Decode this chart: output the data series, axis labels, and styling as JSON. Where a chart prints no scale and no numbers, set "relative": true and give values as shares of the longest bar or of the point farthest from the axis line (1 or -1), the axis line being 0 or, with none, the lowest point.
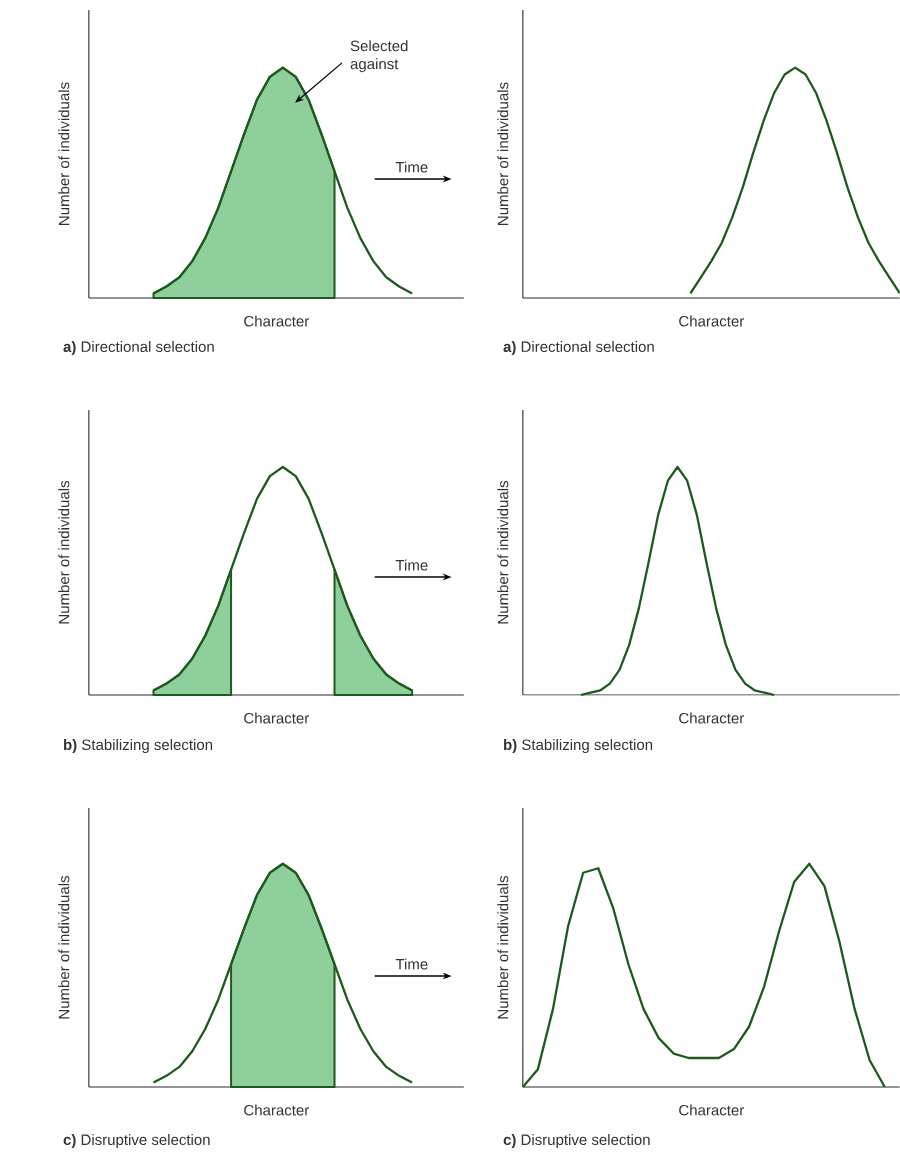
{
  "chart_data": [
    {
      "type": "line",
      "relative": true,
      "title": "**a)** Directional selection",
      "xlabel": "Character",
      "ylabel": "Number of individuals",
      "marker": "none",
      "line_style": "solid",
      "annotations": [
        "Selected against",
        "Time"
      ],
      "categories": [
        null,
        null,
        null,
        null,
        null,
        null,
        null,
        null,
        null,
        null,
        null,
        null,
        null,
        null,
        null,
        null,
        null,
        null,
        null,
        null,
        null,
        null,
        null,
        null,
        null,
        null,
        null,
        null,
        null,
        null
      ],
      "series": [
        {
          "type": "area",
          "color": "#8fcf9c",
          "values": [
            null,
            null,
            null,
            null,
            null,
            0.02,
            0.05,
            0.09,
            0.16,
            0.26,
            0.39,
            0.55,
            0.71,
            0.86,
            0.96,
            1,
            0.96,
            0.86,
            0.71,
            0.55,
            null,
            null,
            null,
            null,
            null,
            null,
            null,
            null,
            null,
            null
          ]
        },
        {
          "color": "#1e5a1e",
          "values": [
            null,
            null,
            null,
            null,
            null,
            0.02,
            0.05,
            0.09,
            0.16,
            0.26,
            0.39,
            0.55,
            0.71,
            0.86,
            0.96,
            1,
            0.96,
            0.86,
            0.71,
            0.55,
            0.39,
            0.26,
            0.16,
            0.09,
            0.05,
            0.02,
            null,
            null,
            null,
            null
          ]
        }
      ]
    },
    {
      "type": "line",
      "relative": true,
      "title": "**a)** Directional selection",
      "xlabel": "Character",
      "ylabel": "Number of individuals",
      "marker": "none",
      "line_style": "solid",
      "categories": [
        null,
        null,
        null,
        null,
        null,
        null,
        null,
        null,
        null,
        null,
        null,
        null,
        null,
        null,
        null,
        null,
        null,
        null,
        null,
        null,
        null,
        null,
        null,
        null,
        null,
        null,
        null,
        null,
        null,
        null,
        null,
        null,
        null,
        null,
        null,
        null,
        null
      ],
      "series": [
        {
          "color": "#1e5a1e",
          "values": [
            null,
            null,
            null,
            null,
            null,
            null,
            null,
            null,
            null,
            null,
            null,
            null,
            null,
            null,
            null,
            null,
            0.02,
            0.09,
            0.16,
            0.24,
            0.35,
            0.48,
            0.63,
            0.77,
            0.89,
            0.97,
            1,
            0.97,
            0.89,
            0.77,
            0.63,
            0.48,
            0.35,
            0.24,
            0.16,
            0.09,
            0.02
          ]
        }
      ]
    },
    {
      "type": "line",
      "relative": true,
      "title": "**b)** Stabilizing selection",
      "xlabel": "Character",
      "ylabel": "Number of individuals",
      "marker": "none",
      "line_style": "solid",
      "annotations": [
        "Time"
      ],
      "categories": [
        null,
        null,
        null,
        null,
        null,
        null,
        null,
        null,
        null,
        null,
        null,
        null,
        null,
        null,
        null,
        null,
        null,
        null,
        null,
        null,
        null,
        null,
        null,
        null,
        null,
        null,
        null,
        null,
        null,
        null
      ],
      "series": [
        {
          "type": "area",
          "color": "#8fcf9c",
          "values": [
            null,
            null,
            null,
            null,
            null,
            0.02,
            0.05,
            0.09,
            0.16,
            0.26,
            0.39,
            0.55,
            null,
            null,
            null,
            null,
            null,
            null,
            null,
            0.55,
            0.39,
            0.26,
            0.16,
            0.09,
            0.05,
            0.02,
            null,
            null,
            null,
            null
          ]
        },
        {
          "color": "#1e5a1e",
          "values": [
            null,
            null,
            null,
            null,
            null,
            0.02,
            0.05,
            0.09,
            0.16,
            0.26,
            0.39,
            0.55,
            0.71,
            0.86,
            0.96,
            1,
            0.96,
            0.86,
            0.71,
            0.55,
            0.39,
            0.26,
            0.16,
            0.09,
            0.05,
            0.02,
            null,
            null,
            null,
            null
          ]
        }
      ]
    },
    {
      "type": "line",
      "relative": true,
      "title": "**b)** Stabilizing selection",
      "xlabel": "Character",
      "ylabel": "Number of individuals",
      "marker": "none",
      "line_style": "solid",
      "categories": [
        null,
        null,
        null,
        null,
        null,
        null,
        null,
        null,
        null,
        null,
        null,
        null,
        null,
        null,
        null,
        null,
        null,
        null,
        null,
        null,
        null,
        null,
        null,
        null,
        null,
        null,
        null,
        null,
        null,
        null,
        null,
        null,
        null,
        null,
        null,
        null,
        null,
        null,
        null,
        null
      ],
      "series": [
        {
          "color": "#1e5a1e",
          "values": [
            null,
            null,
            null,
            null,
            null,
            null,
            0,
            0.01,
            0.02,
            0.05,
            0.11,
            0.22,
            0.38,
            0.58,
            0.79,
            0.94,
            1,
            0.94,
            0.79,
            0.58,
            0.38,
            0.22,
            0.11,
            0.05,
            0.02,
            0.01,
            0,
            null,
            null,
            null,
            null,
            null,
            null,
            null,
            null,
            null,
            null,
            null,
            null,
            null
          ]
        }
      ]
    },
    {
      "type": "line",
      "relative": true,
      "title": "**c)** Disruptive selection",
      "xlabel": "Character",
      "ylabel": "Number of individuals",
      "marker": "none",
      "line_style": "solid",
      "annotations": [
        "Time"
      ],
      "categories": [
        null,
        null,
        null,
        null,
        null,
        null,
        null,
        null,
        null,
        null,
        null,
        null,
        null,
        null,
        null,
        null,
        null,
        null,
        null,
        null,
        null,
        null,
        null,
        null,
        null,
        null,
        null,
        null,
        null,
        null
      ],
      "series": [
        {
          "type": "area",
          "color": "#8fcf9c",
          "values": [
            null,
            null,
            null,
            null,
            null,
            null,
            null,
            null,
            null,
            null,
            null,
            0.55,
            0.71,
            0.86,
            0.96,
            1,
            0.96,
            0.86,
            0.71,
            0.55,
            null,
            null,
            null,
            null,
            null,
            null,
            null,
            null,
            null,
            null
          ]
        },
        {
          "color": "#1e5a1e",
          "values": [
            null,
            null,
            null,
            null,
            null,
            0.02,
            0.05,
            0.09,
            0.16,
            0.26,
            0.39,
            0.55,
            0.71,
            0.86,
            0.96,
            1,
            0.96,
            0.86,
            0.71,
            0.55,
            0.39,
            0.26,
            0.16,
            0.09,
            0.05,
            0.02,
            null,
            null,
            null,
            null
          ]
        }
      ]
    },
    {
      "type": "line",
      "relative": true,
      "title": "**c)** Disruptive selection",
      "xlabel": "Character",
      "ylabel": "Number of individuals",
      "marker": "none",
      "line_style": "solid",
      "categories": [
        null,
        null,
        null,
        null,
        null,
        null,
        null,
        null,
        null,
        null,
        null,
        null,
        null,
        null,
        null,
        null,
        null,
        null,
        null,
        null,
        null,
        null,
        null,
        null,
        null,
        null
      ],
      "series": [
        {
          "color": "#1e5a1e",
          "values": [
            0,
            0.08,
            0.35,
            0.72,
            0.96,
            0.98,
            0.8,
            0.55,
            0.35,
            0.22,
            0.15,
            0.13,
            0.13,
            0.13,
            0.17,
            0.27,
            0.45,
            0.7,
            0.92,
            1,
            0.9,
            0.65,
            0.35,
            0.12,
            0,
            null
          ]
        }
      ]
    }
  ]
}
